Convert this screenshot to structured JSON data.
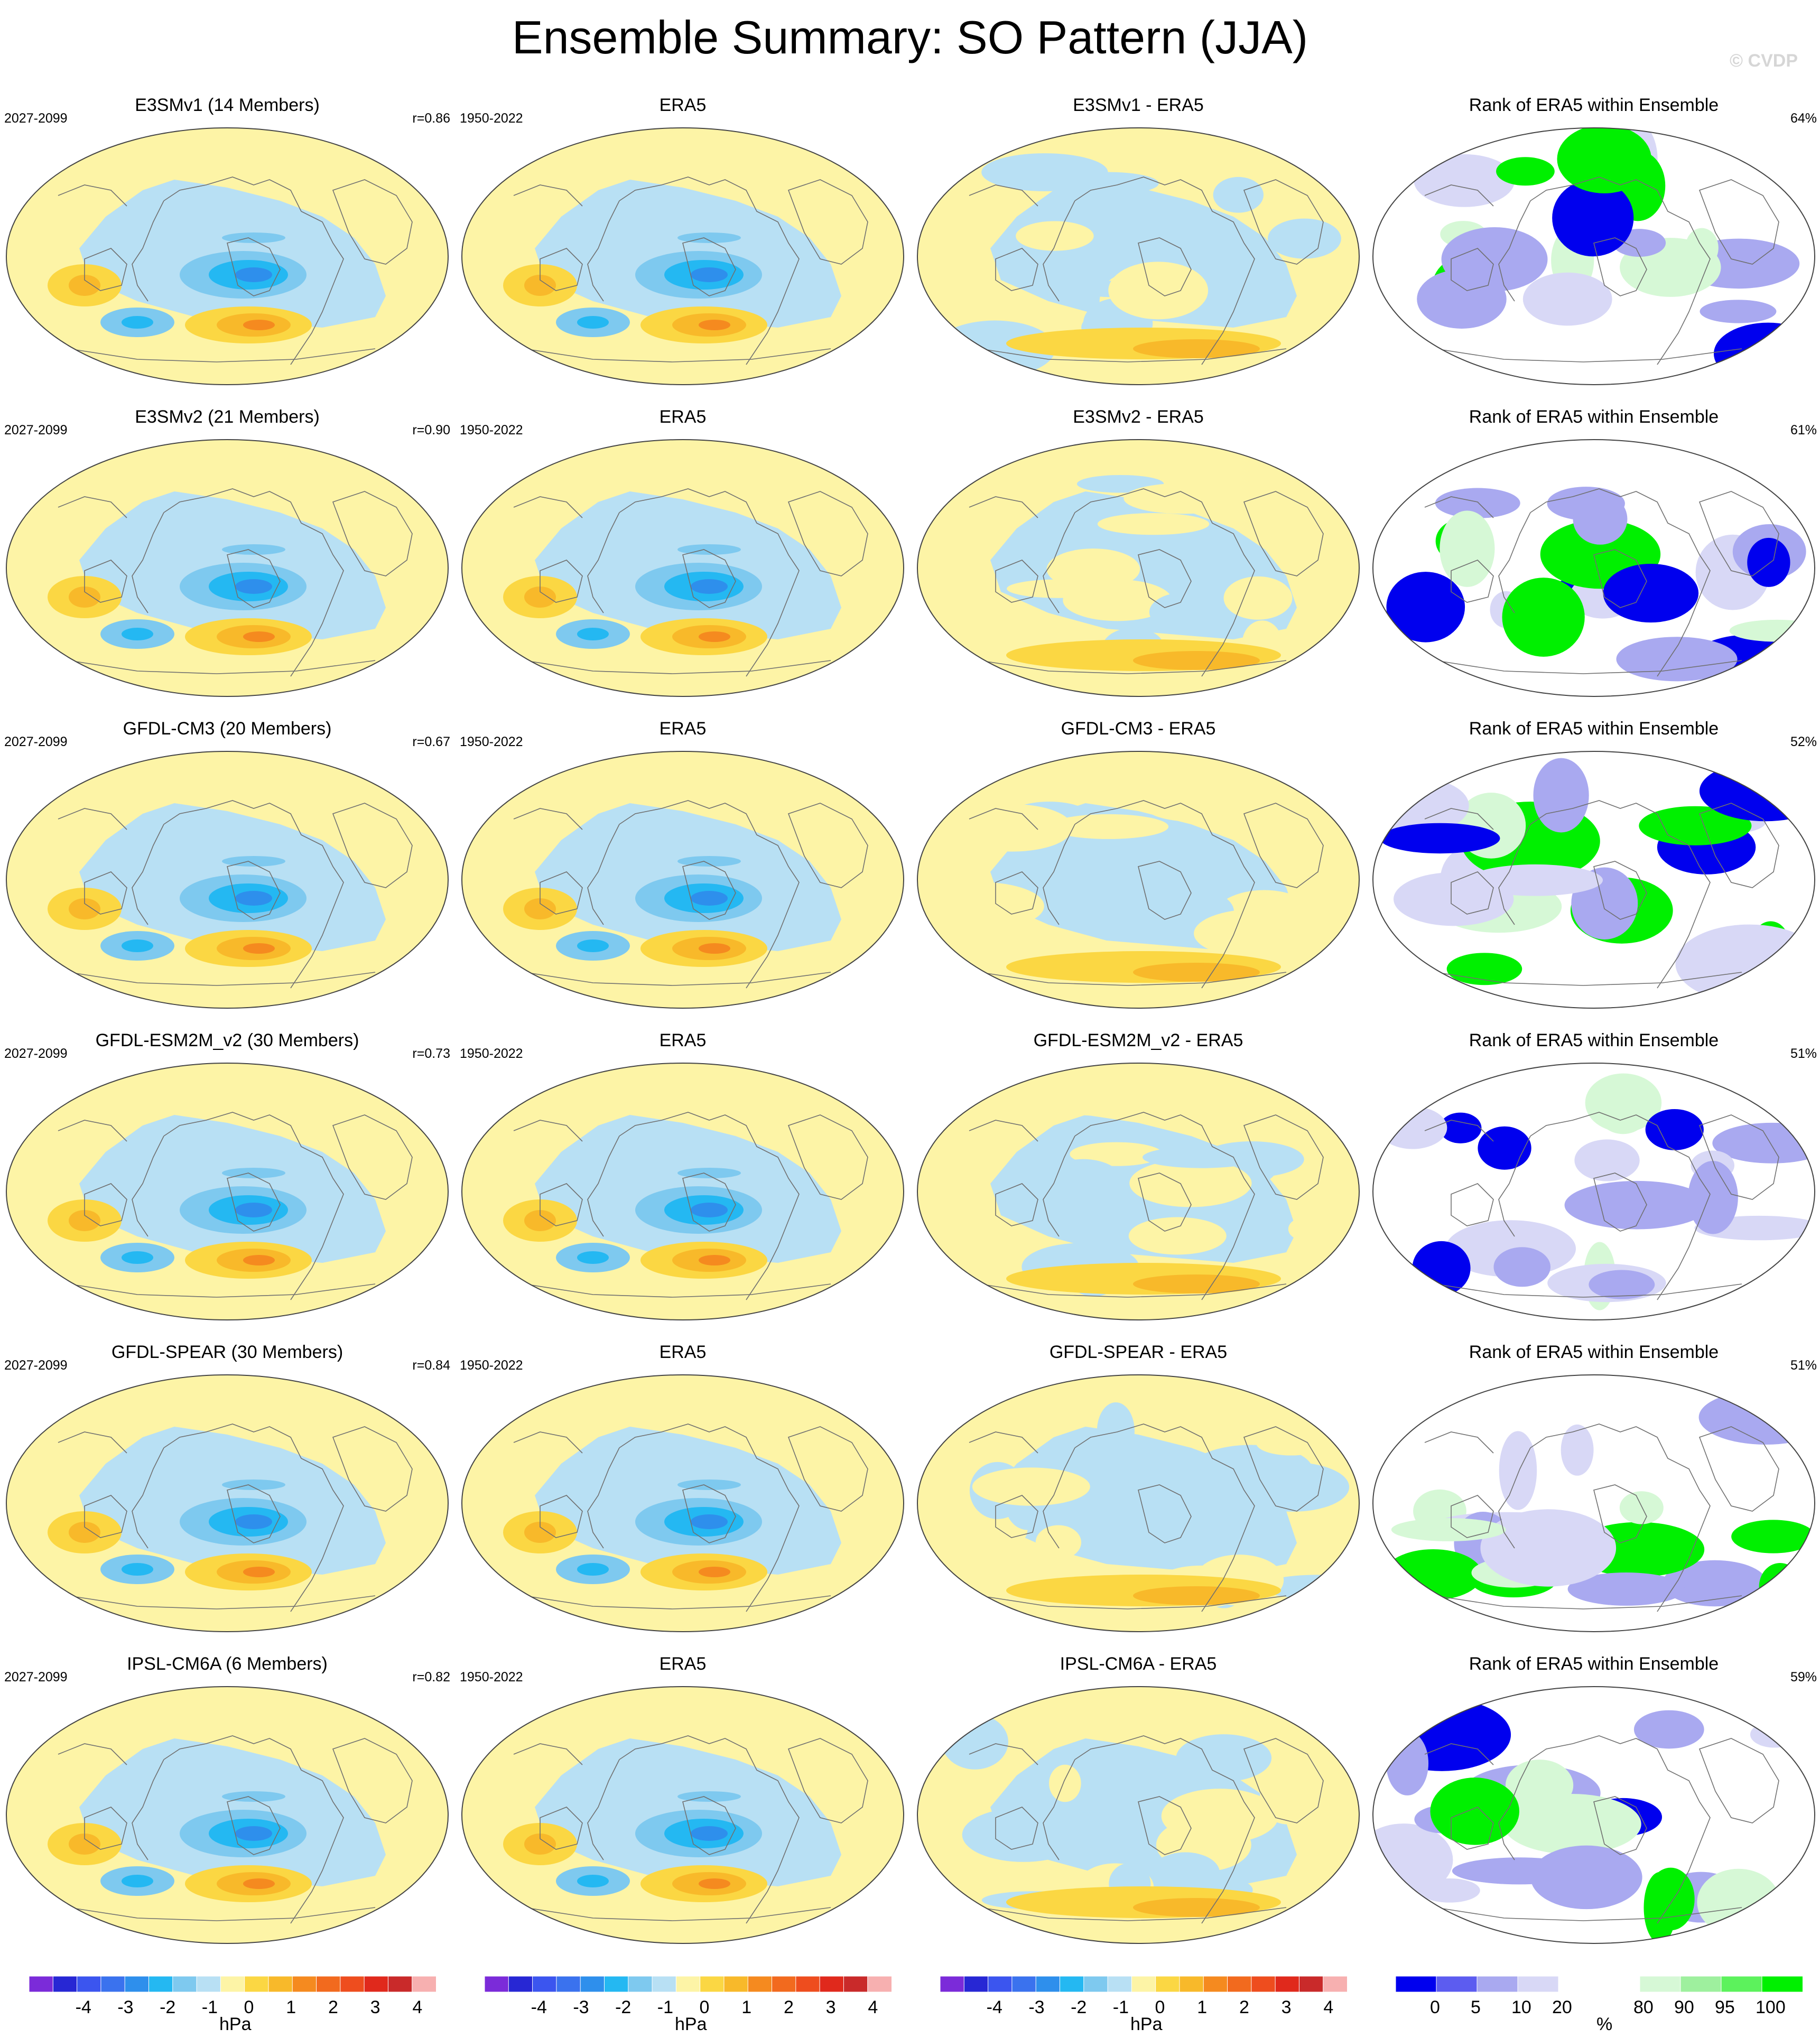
{
  "title": "Ensemble Summary: SO Pattern (JJA)",
  "copyright": "© CVDP",
  "colors": {
    "neg4": "#2727d4",
    "neg3": "#3b55ef",
    "neg2": "#2e8fec",
    "neg1": "#24b8f2",
    "neg05": "#7ec9ef",
    "neg0": "#b8e0f4",
    "pos0": "#fdf4a6",
    "pos05": "#fbd743",
    "pos1": "#f8b92a",
    "pos2": "#f58a1f",
    "pos3": "#ee4d1e",
    "pos4": "#e0291c",
    "rank_blue": "#0000ee",
    "rank_lightblue": "#a9a9f0",
    "rank_paleblue": "#d8d8f6",
    "rank_white": "#ffffff",
    "rank_palegreen": "#d6f8d6",
    "rank_lightgreen": "#9ef09e",
    "rank_green": "#00f000",
    "coast": "#707070"
  },
  "chart_data": [
    {
      "type": "heatmap",
      "row": 1,
      "col": 1,
      "title": "E3SMv1 (14 Members)",
      "period": "2027-2099",
      "stat": "r=0.86"
    },
    {
      "type": "heatmap",
      "row": 1,
      "col": 2,
      "title": "ERA5",
      "period": "1950-2022",
      "stat": ""
    },
    {
      "type": "heatmap",
      "row": 1,
      "col": 3,
      "title": "E3SMv1 - ERA5",
      "period": "",
      "stat": ""
    },
    {
      "type": "heatmap",
      "row": 1,
      "col": 4,
      "title": "Rank of ERA5 within Ensemble",
      "period": "",
      "stat": "64%"
    },
    {
      "type": "heatmap",
      "row": 2,
      "col": 1,
      "title": "E3SMv2 (21 Members)",
      "period": "2027-2099",
      "stat": "r=0.90"
    },
    {
      "type": "heatmap",
      "row": 2,
      "col": 2,
      "title": "ERA5",
      "period": "1950-2022",
      "stat": ""
    },
    {
      "type": "heatmap",
      "row": 2,
      "col": 3,
      "title": "E3SMv2 - ERA5",
      "period": "",
      "stat": ""
    },
    {
      "type": "heatmap",
      "row": 2,
      "col": 4,
      "title": "Rank of ERA5 within Ensemble",
      "period": "",
      "stat": "61%"
    },
    {
      "type": "heatmap",
      "row": 3,
      "col": 1,
      "title": "GFDL-CM3 (20 Members)",
      "period": "2027-2099",
      "stat": "r=0.67"
    },
    {
      "type": "heatmap",
      "row": 3,
      "col": 2,
      "title": "ERA5",
      "period": "1950-2022",
      "stat": ""
    },
    {
      "type": "heatmap",
      "row": 3,
      "col": 3,
      "title": "GFDL-CM3 - ERA5",
      "period": "",
      "stat": ""
    },
    {
      "type": "heatmap",
      "row": 3,
      "col": 4,
      "title": "Rank of ERA5 within Ensemble",
      "period": "",
      "stat": "52%"
    },
    {
      "type": "heatmap",
      "row": 4,
      "col": 1,
      "title": "GFDL-ESM2M_v2 (30 Members)",
      "period": "2027-2099",
      "stat": "r=0.73"
    },
    {
      "type": "heatmap",
      "row": 4,
      "col": 2,
      "title": "ERA5",
      "period": "1950-2022",
      "stat": ""
    },
    {
      "type": "heatmap",
      "row": 4,
      "col": 3,
      "title": "GFDL-ESM2M_v2 - ERA5",
      "period": "",
      "stat": ""
    },
    {
      "type": "heatmap",
      "row": 4,
      "col": 4,
      "title": "Rank of ERA5 within Ensemble",
      "period": "",
      "stat": "51%"
    },
    {
      "type": "heatmap",
      "row": 5,
      "col": 1,
      "title": "GFDL-SPEAR (30 Members)",
      "period": "2027-2099",
      "stat": "r=0.84"
    },
    {
      "type": "heatmap",
      "row": 5,
      "col": 2,
      "title": "ERA5",
      "period": "1950-2022",
      "stat": ""
    },
    {
      "type": "heatmap",
      "row": 5,
      "col": 3,
      "title": "GFDL-SPEAR - ERA5",
      "period": "",
      "stat": ""
    },
    {
      "type": "heatmap",
      "row": 5,
      "col": 4,
      "title": "Rank of ERA5 within Ensemble",
      "period": "",
      "stat": "51%"
    },
    {
      "type": "heatmap",
      "row": 6,
      "col": 1,
      "title": "IPSL-CM6A (6 Members)",
      "period": "2027-2099",
      "stat": "r=0.82"
    },
    {
      "type": "heatmap",
      "row": 6,
      "col": 2,
      "title": "ERA5",
      "period": "1950-2022",
      "stat": ""
    },
    {
      "type": "heatmap",
      "row": 6,
      "col": 3,
      "title": "IPSL-CM6A - ERA5",
      "period": "",
      "stat": ""
    },
    {
      "type": "heatmap",
      "row": 6,
      "col": 4,
      "title": "Rank of ERA5 within Ensemble",
      "period": "",
      "stat": "59%"
    }
  ],
  "colorbars": [
    {
      "ticks": [
        "-4",
        "-3",
        "-2",
        "-1",
        "0",
        "1",
        "2",
        "3",
        "4"
      ],
      "unit": "hPa"
    },
    {
      "ticks": [
        "-4",
        "-3",
        "-2",
        "-1",
        "0",
        "1",
        "2",
        "3",
        "4"
      ],
      "unit": "hPa"
    },
    {
      "ticks": [
        "-4",
        "-3",
        "-2",
        "-1",
        "0",
        "1",
        "2",
        "3",
        "4"
      ],
      "unit": "hPa"
    },
    {
      "ticks": [
        "0",
        "5",
        "10",
        "20",
        "80",
        "90",
        "95",
        "100"
      ],
      "unit": "%"
    }
  ]
}
